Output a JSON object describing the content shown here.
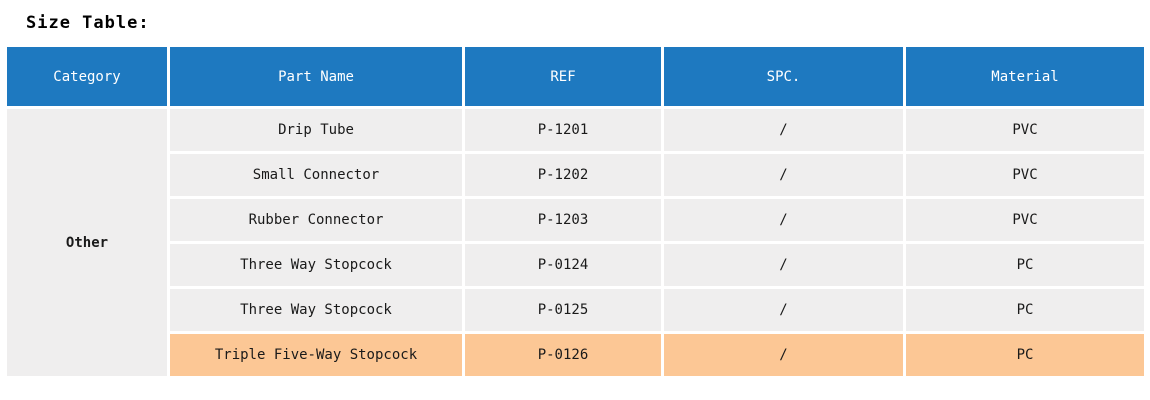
{
  "title": "Size Table:",
  "headers": [
    "Category",
    "Part Name",
    "REF",
    "SPC.",
    "Material"
  ],
  "category": "Other",
  "rows": [
    {
      "part_name": "Drip Tube",
      "ref": "P-1201",
      "spc": "/",
      "material": "PVC",
      "highlighted": false
    },
    {
      "part_name": "Small Connector",
      "ref": "P-1202",
      "spc": "/",
      "material": "PVC",
      "highlighted": false
    },
    {
      "part_name": "Rubber Connector",
      "ref": "P-1203",
      "spc": "/",
      "material": "PVC",
      "highlighted": false
    },
    {
      "part_name": "Three Way Stopcock",
      "ref": "P-0124",
      "spc": "/",
      "material": "PC",
      "highlighted": false
    },
    {
      "part_name": "Three Way Stopcock",
      "ref": "P-0125",
      "spc": "/",
      "material": "PC",
      "highlighted": false
    },
    {
      "part_name": "Triple Five-Way Stopcock",
      "ref": "P-0126",
      "spc": "/",
      "material": "PC",
      "highlighted": true
    }
  ],
  "colors": {
    "header_bg": "#1E79C0",
    "header_text": "#FFFFFF",
    "row_bg": "#EFEEEE",
    "highlight_bg": "#FCC795",
    "body_text": "#1A1A1A",
    "title_text": "#000000"
  }
}
